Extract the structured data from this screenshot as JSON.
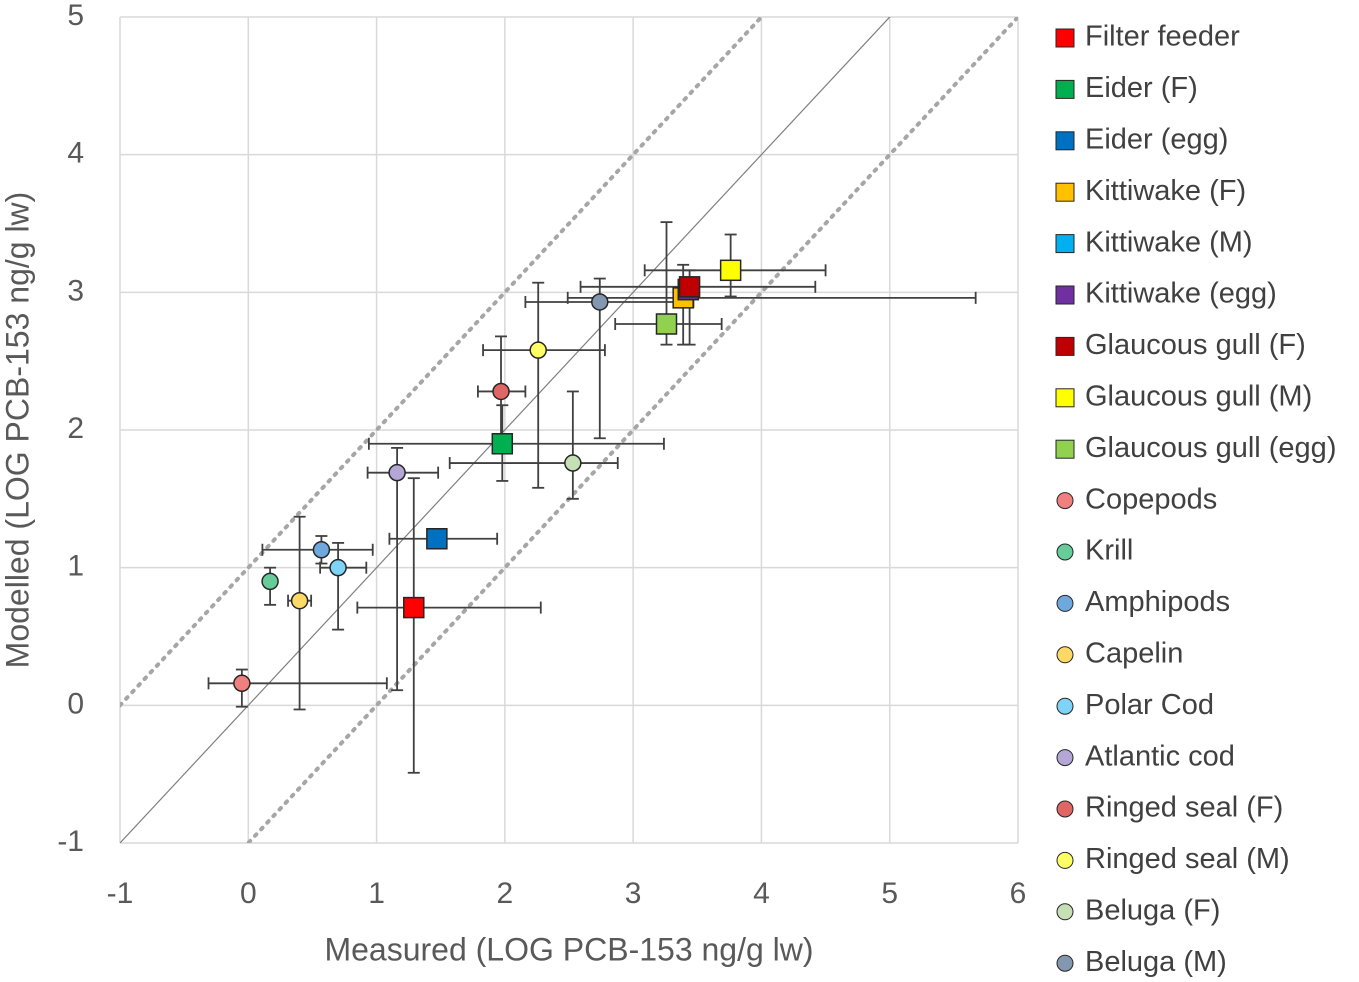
{
  "chart_data": {
    "type": "scatter",
    "x_label": "Measured (LOG PCB-153 ng/g lw)",
    "y_label": "Modelled (LOG PCB-153 ng/g lw)",
    "xlim": [
      -1,
      6
    ],
    "ylim": [
      -1,
      5
    ],
    "xticks": [
      -1,
      0,
      1,
      2,
      3,
      4,
      5,
      6
    ],
    "yticks": [
      -1,
      0,
      1,
      2,
      3,
      4,
      5
    ],
    "grid": true,
    "legend": "right",
    "series": [
      {
        "name": "Filter feeder",
        "color": "#ff0000",
        "marker": "square",
        "x": 1.29,
        "y": 0.71,
        "xerr": [
          0.44,
          0.99
        ],
        "yerr": [
          1.2,
          0.94
        ]
      },
      {
        "name": "Eider (F)",
        "color": "#00b050",
        "marker": "square",
        "x": 1.98,
        "y": 1.9,
        "xerr": [
          1.04,
          1.26
        ],
        "yerr": [
          0.27,
          0.28
        ]
      },
      {
        "name": "Eider (egg)",
        "color": "#0070c0",
        "marker": "square",
        "x": 1.47,
        "y": 1.21,
        "xerr": [
          0.37,
          0.47
        ],
        "yerr": null
      },
      {
        "name": "Kittiwake (F)",
        "color": "#ffc000",
        "marker": "square",
        "x": 3.39,
        "y": 2.96,
        "xerr": [
          0.9,
          2.28
        ],
        "yerr": [
          0.34,
          0.24
        ]
      },
      {
        "name": "Kittiwake (M)",
        "color": "#00b0f0",
        "marker": "square",
        "x": 3.43,
        "y": 3.02,
        "xerr": null,
        "yerr": null
      },
      {
        "name": "Kittiwake (egg)",
        "color": "#7030a0",
        "marker": "square",
        "x": 3.43,
        "y": 3.02,
        "xerr": null,
        "yerr": null
      },
      {
        "name": "Glaucous gull (F)",
        "color": "#c00000",
        "marker": "square",
        "x": 3.44,
        "y": 3.04,
        "xerr": [
          0.85,
          0.98
        ],
        "yerr": [
          0.42,
          0.12
        ]
      },
      {
        "name": "Glaucous gull (M)",
        "color": "#ffff00",
        "marker": "square",
        "x": 3.76,
        "y": 3.16,
        "xerr": [
          0.67,
          0.74
        ],
        "yerr": [
          0.19,
          0.26
        ]
      },
      {
        "name": "Glaucous gull (egg)",
        "color": "#92d050",
        "marker": "square",
        "x": 3.26,
        "y": 2.77,
        "xerr": [
          0.4,
          0.43
        ],
        "yerr": [
          0.15,
          0.74
        ]
      },
      {
        "name": "Copepods",
        "color": "#f08080",
        "marker": "circle",
        "x": -0.05,
        "y": 0.16,
        "xerr": [
          0.26,
          1.13
        ],
        "yerr": [
          0.17,
          0.1
        ]
      },
      {
        "name": "Krill",
        "color": "#66cc99",
        "marker": "circle",
        "x": 0.17,
        "y": 0.9,
        "xerr": null,
        "yerr": [
          0.17,
          0.1
        ]
      },
      {
        "name": "Amphipods",
        "color": "#6fa8dc",
        "marker": "circle",
        "x": 0.57,
        "y": 1.13,
        "xerr": [
          0.46,
          0.4
        ],
        "yerr": [
          0.1,
          0.1
        ]
      },
      {
        "name": "Capelin",
        "color": "#ffd966",
        "marker": "circle",
        "x": 0.4,
        "y": 0.76,
        "xerr": [
          0.09,
          0.09
        ],
        "yerr": [
          0.79,
          0.61
        ]
      },
      {
        "name": "Polar Cod",
        "color": "#7fd3f7",
        "marker": "circle",
        "x": 0.7,
        "y": 1.0,
        "xerr": [
          0.14,
          0.22
        ],
        "yerr": [
          0.45,
          0.18
        ]
      },
      {
        "name": "Atlantic cod",
        "color": "#b4a7d6",
        "marker": "circle",
        "x": 1.16,
        "y": 1.69,
        "xerr": [
          0.23,
          0.32
        ],
        "yerr": [
          1.58,
          0.18
        ]
      },
      {
        "name": "Ringed seal (F)",
        "color": "#e06666",
        "marker": "circle",
        "x": 1.97,
        "y": 2.28,
        "xerr": [
          0.18,
          0.19
        ],
        "yerr": [
          0.4,
          0.4
        ]
      },
      {
        "name": "Ringed seal (M)",
        "color": "#ffff66",
        "marker": "circle",
        "x": 2.26,
        "y": 2.58,
        "xerr": [
          0.43,
          0.52
        ],
        "yerr": [
          1.0,
          0.49
        ]
      },
      {
        "name": "Beluga (F)",
        "color": "#c5e0b4",
        "marker": "circle",
        "x": 2.53,
        "y": 1.76,
        "xerr": [
          0.96,
          0.35
        ],
        "yerr": [
          0.26,
          0.52
        ]
      },
      {
        "name": "Beluga (M)",
        "color": "#8497b0",
        "marker": "circle",
        "x": 2.74,
        "y": 2.93,
        "xerr": [
          0.58,
          0.73
        ],
        "yerr": [
          0.99,
          0.17
        ]
      }
    ]
  }
}
